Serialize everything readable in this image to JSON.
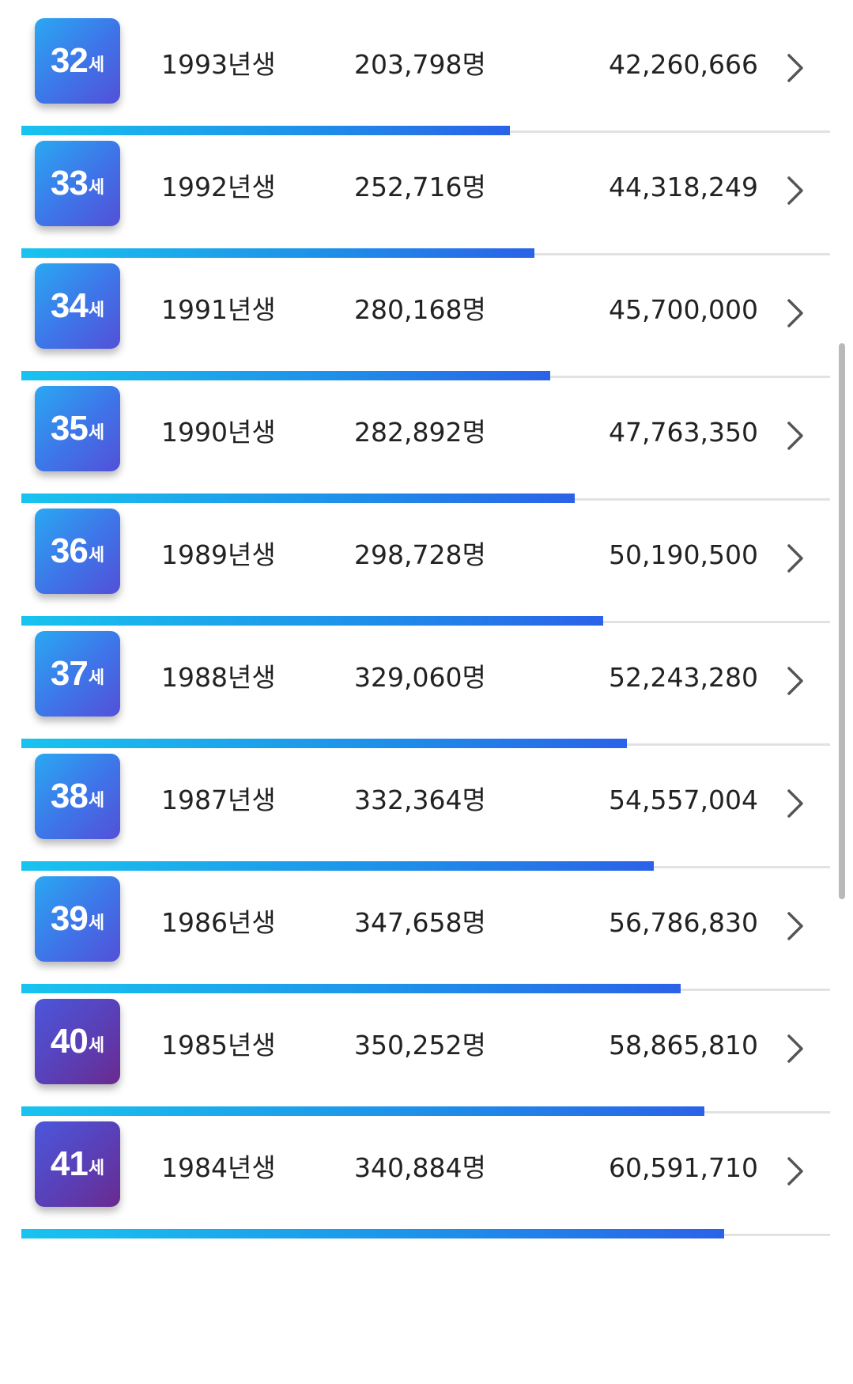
{
  "rows": [
    {
      "age": "32",
      "unit": "세",
      "year": "1993년생",
      "count": "203,798명",
      "amount": "42,260,666",
      "icon": "chevron-right-icon",
      "bar_fraction": 0.604,
      "badge_color": "blue"
    },
    {
      "age": "33",
      "unit": "세",
      "year": "1992년생",
      "count": "252,716명",
      "amount": "44,318,249",
      "icon": "chevron-right-icon",
      "bar_fraction": 0.634,
      "badge_color": "blue"
    },
    {
      "age": "34",
      "unit": "세",
      "year": "1991년생",
      "count": "280,168명",
      "amount": "45,700,000",
      "icon": "chevron-right-icon",
      "bar_fraction": 0.654,
      "badge_color": "blue"
    },
    {
      "age": "35",
      "unit": "세",
      "year": "1990년생",
      "count": "282,892명",
      "amount": "47,763,350",
      "icon": "chevron-right-icon",
      "bar_fraction": 0.684,
      "badge_color": "blue"
    },
    {
      "age": "36",
      "unit": "세",
      "year": "1989년생",
      "count": "298,728명",
      "amount": "50,190,500",
      "icon": "chevron-right-icon",
      "bar_fraction": 0.719,
      "badge_color": "blue"
    },
    {
      "age": "37",
      "unit": "세",
      "year": "1988년생",
      "count": "329,060명",
      "amount": "52,243,280",
      "icon": "chevron-right-icon",
      "bar_fraction": 0.749,
      "badge_color": "blue"
    },
    {
      "age": "38",
      "unit": "세",
      "year": "1987년생",
      "count": "332,364명",
      "amount": "54,557,004",
      "icon": "chevron-right-icon",
      "bar_fraction": 0.782,
      "badge_color": "blue"
    },
    {
      "age": "39",
      "unit": "세",
      "year": "1986년생",
      "count": "347,658명",
      "amount": "56,786,830",
      "icon": "chevron-right-icon",
      "bar_fraction": 0.815,
      "badge_color": "blue"
    },
    {
      "age": "40",
      "unit": "세",
      "year": "1985년생",
      "count": "350,252명",
      "amount": "58,865,810",
      "icon": "chevron-right-icon",
      "bar_fraction": 0.845,
      "badge_color": "purple"
    },
    {
      "age": "41",
      "unit": "세",
      "year": "1984년생",
      "count": "340,884명",
      "amount": "60,591,710",
      "icon": "chevron-right-icon",
      "bar_fraction": 0.869,
      "badge_color": "purple"
    }
  ],
  "colors": {
    "badge_blue": "#3f73e8",
    "badge_purple": "#5a3fb6",
    "bar_start": "#19c3ef",
    "bar_end": "#2b62e8",
    "track": "#e2e2e2",
    "text": "#222222"
  },
  "scrollbar": {
    "visible": true
  }
}
